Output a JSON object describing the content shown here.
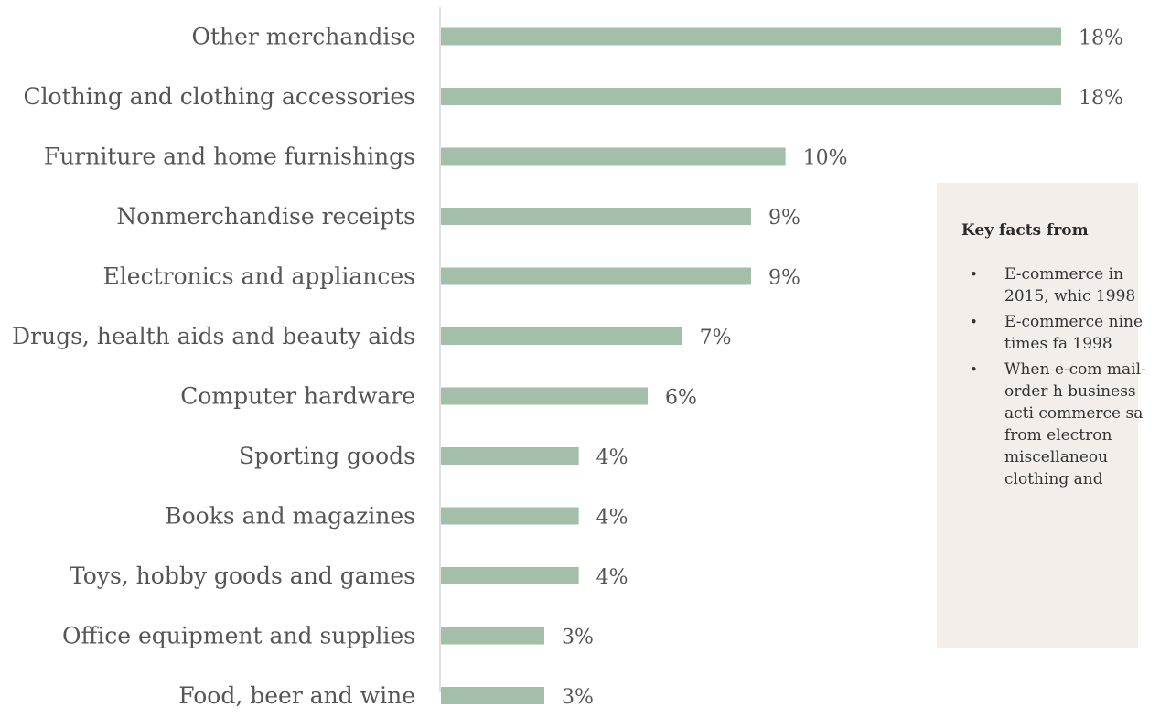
{
  "chart_data": {
    "type": "bar",
    "orientation": "horizontal",
    "categories": [
      "Other merchandise",
      "Clothing and clothing accessories",
      "Furniture and home furnishings",
      "Nonmerchandise receipts",
      "Electronics and appliances",
      "Drugs, health aids and beauty aids",
      "Computer hardware",
      "Sporting goods",
      "Books and magazines",
      "Toys, hobby goods and games",
      "Office equipment and supplies",
      "Food, beer and wine"
    ],
    "values": [
      18,
      18,
      10,
      9,
      9,
      7,
      6,
      4,
      4,
      4,
      3,
      3
    ],
    "value_labels": [
      "18%",
      "18%",
      "10%",
      "9%",
      "9%",
      "7%",
      "6%",
      "4%",
      "4%",
      "4%",
      "3%",
      "3%"
    ],
    "unit": "%",
    "xlim": [
      0,
      18
    ],
    "bar_color": "#a3bfaa",
    "axis_color": "#d9d9d9",
    "grid": false
  },
  "facts_box": {
    "title": "Key facts from",
    "items": [
      {
        "bullet": "•",
        "text": "E-commerce in 2015, whic 1998"
      },
      {
        "bullet": "•",
        "text": "E-commerce nine times fa 1998"
      },
      {
        "bullet": "•",
        "text": "When e-com mail-order h business acti commerce sa from electron miscellaneou clothing and"
      }
    ]
  },
  "colors": {
    "facts_background": "#f3eee9"
  }
}
